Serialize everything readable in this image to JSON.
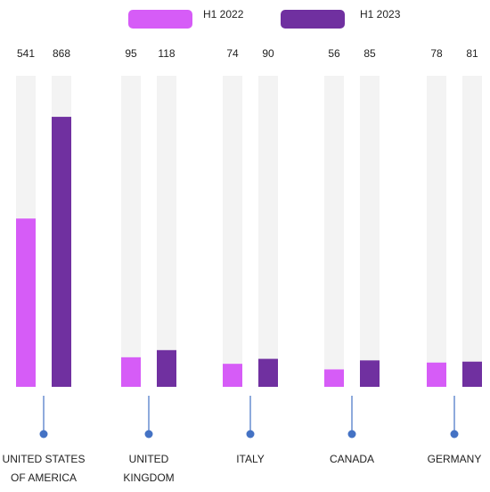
{
  "chart_data": {
    "type": "bar",
    "title": "",
    "xlabel": "",
    "ylabel": "",
    "legend": "top",
    "grid": false,
    "ylim": [
      0,
      1000
    ],
    "categories": [
      [
        "UNITED STATES",
        "OF AMERICA"
      ],
      [
        "UNITED",
        "KINGDOM"
      ],
      [
        "ITALY"
      ],
      [
        "CANADA"
      ],
      [
        "GERMANY"
      ]
    ],
    "series": [
      {
        "name": "H1 2022",
        "values": [
          541,
          95,
          74,
          56,
          78
        ]
      },
      {
        "name": "H1 2023",
        "values": [
          868,
          118,
          90,
          85,
          81
        ]
      }
    ]
  },
  "colors": {
    "series": [
      "#d65cf7",
      "#7030a0"
    ],
    "track": "#f3f3f3",
    "connector": "#4472c4",
    "text": "#222222"
  }
}
